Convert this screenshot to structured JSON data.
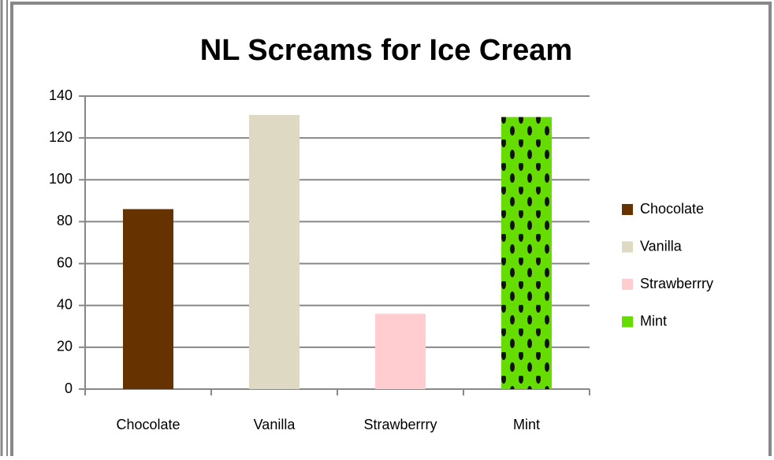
{
  "chart_data": {
    "type": "bar",
    "title": "NL Screams for Ice Cream",
    "categories": [
      "Chocolate",
      "Vanilla",
      "Strawberrry",
      "Mint"
    ],
    "values": [
      86,
      131,
      36,
      130
    ],
    "colors": [
      "#663300",
      "#ddd9c3",
      "#ffccd0",
      "#66dd00"
    ],
    "ylim": [
      0,
      140
    ],
    "yticks": [
      0,
      20,
      40,
      60,
      80,
      100,
      120,
      140
    ],
    "grid": true,
    "legend": "right"
  }
}
